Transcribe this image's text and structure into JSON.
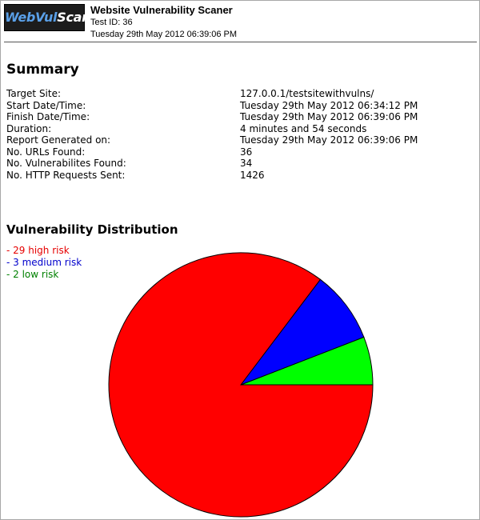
{
  "header": {
    "logo": {
      "part1": "WebVul",
      "part2": "Scan"
    },
    "title": "Website Vulnerability Scaner",
    "test_id": "Test ID: 36",
    "date": "Tuesday 29th May 2012 06:39:06 PM"
  },
  "summary": {
    "title": "Summary",
    "rows": [
      {
        "label": "Target Site:",
        "value": "127.0.0.1/testsitewithvulns/"
      },
      {
        "label": "Start Date/Time:",
        "value": "Tuesday 29th May 2012 06:34:12 PM"
      },
      {
        "label": "Finish Date/Time:",
        "value": "Tuesday 29th May 2012 06:39:06 PM"
      },
      {
        "label": "Duration:",
        "value": "4 minutes and 54 seconds"
      },
      {
        "label": "Report Generated on:",
        "value": "Tuesday 29th May 2012 06:39:06 PM"
      },
      {
        "label": "No. URLs Found:",
        "value": "36"
      },
      {
        "label": "No. Vulnerabilites Found:",
        "value": "34"
      },
      {
        "label": "No. HTTP Requests Sent:",
        "value": "1426"
      }
    ]
  },
  "distribution": {
    "title": "Vulnerability Distribution",
    "legend": [
      {
        "text": "- 29 high risk",
        "color": "#e60000"
      },
      {
        "text": "- 3 medium risk",
        "color": "#0000cc"
      },
      {
        "text": "- 2 low risk",
        "color": "#008000"
      }
    ]
  },
  "chart_data": {
    "type": "pie",
    "categories": [
      "high risk",
      "medium risk",
      "low risk"
    ],
    "values": [
      29,
      3,
      2
    ],
    "colors": [
      "#ff0000",
      "#0000ff",
      "#00ff00"
    ]
  }
}
